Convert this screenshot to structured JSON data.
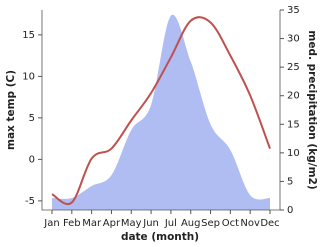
{
  "chart_data": {
    "type": "line_area",
    "x_label": "date (month)",
    "y_label": "max temp (C)",
    "y2_label": "med. precipitation (kg/m2)",
    "categories": [
      "Jan",
      "Feb",
      "Mar",
      "Apr",
      "May",
      "Jun",
      "Jul",
      "Aug",
      "Sep",
      "Oct",
      "Nov",
      "Dec"
    ],
    "series": [
      {
        "name": "max temp",
        "color": "#c0504d",
        "kind": "line",
        "values": [
          -4.2,
          -5.2,
          0.1,
          1.3,
          4.7,
          8.0,
          12.3,
          16.7,
          16.5,
          12.5,
          7.7,
          1.3
        ]
      },
      {
        "name": "precipitation",
        "color": "#b0bdf2",
        "kind": "area",
        "axis": "y2",
        "values": [
          2.1,
          2.1,
          4.2,
          6.1,
          14,
          18.4,
          34,
          26,
          15,
          10.5,
          2.6,
          2.1
        ]
      }
    ],
    "ylim": [
      -6.1,
      18
    ],
    "yticks": [
      -5,
      0,
      5,
      10,
      15
    ],
    "y2lim": [
      0,
      35
    ],
    "y2ticks": [
      0,
      5,
      10,
      15,
      20,
      25,
      30,
      35
    ]
  }
}
